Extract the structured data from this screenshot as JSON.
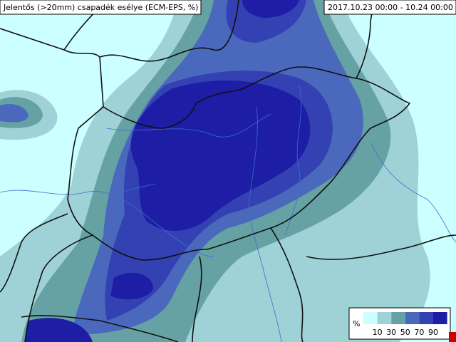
{
  "header": {
    "title": "Jelentős (>20mm) csapadék esélye (ECM-EPS, %)",
    "period": "2017.10.23 00:00 -  10.24 00:00"
  },
  "legend": {
    "unit": "%",
    "ticks": [
      10,
      30,
      50,
      70,
      90
    ],
    "colors": [
      "#ccffff",
      "#9fd2d6",
      "#66a1a4",
      "#4a69bd",
      "#3441b2",
      "#1d1da6"
    ]
  }
}
